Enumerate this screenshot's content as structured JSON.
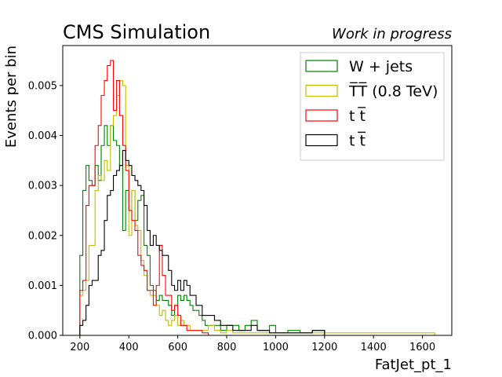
{
  "chart_data": {
    "type": "histogram-step",
    "title": "CMS Simulation",
    "subtitle": "Work in progress",
    "xlabel": "FatJet_pt_1",
    "ylabel": "Events per bin",
    "xlim": [
      130,
      1720
    ],
    "ylim": [
      0,
      0.0058
    ],
    "xticks": [
      200,
      400,
      600,
      800,
      1000,
      1200,
      1400,
      1600
    ],
    "yticks": [
      0.0,
      0.001,
      0.002,
      0.003,
      0.004,
      0.005
    ],
    "ytick_labels": [
      "0.000",
      "0.001",
      "0.002",
      "0.003",
      "0.004",
      "0.005"
    ],
    "grid": false,
    "legend_position": "upper right",
    "series": [
      {
        "name": "W + jets",
        "color": "#008000",
        "bins": [
          [
            200,
            0.0016
          ],
          [
            212,
            0.0029
          ],
          [
            225,
            0.0034
          ],
          [
            237,
            0.0031
          ],
          [
            250,
            0.003
          ],
          [
            262,
            0.0034
          ],
          [
            275,
            0.0031
          ],
          [
            287,
            0.0038
          ],
          [
            300,
            0.0042
          ],
          [
            312,
            0.0038
          ],
          [
            325,
            0.0042
          ],
          [
            337,
            0.0039
          ],
          [
            350,
            0.0038
          ],
          [
            362,
            0.0034
          ],
          [
            375,
            0.0021
          ],
          [
            387,
            0.0029
          ],
          [
            400,
            0.0025
          ],
          [
            412,
            0.0029
          ],
          [
            425,
            0.0023
          ],
          [
            437,
            0.0027
          ],
          [
            450,
            0.0028
          ],
          [
            462,
            0.0018
          ],
          [
            475,
            0.0016
          ],
          [
            487,
            0.001
          ],
          [
            500,
            0.0009
          ],
          [
            512,
            0.0007
          ],
          [
            525,
            0.0008
          ],
          [
            537,
            0.0007
          ],
          [
            550,
            0.0007
          ],
          [
            562,
            0.0006
          ],
          [
            575,
            0.0004
          ],
          [
            587,
            0.0006
          ],
          [
            600,
            0.0008
          ],
          [
            612,
            0.0007
          ],
          [
            625,
            0.0008
          ],
          [
            637,
            0.0007
          ],
          [
            650,
            0.0006
          ],
          [
            662,
            0.0005
          ],
          [
            675,
            0.0005
          ],
          [
            687,
            0.0004
          ],
          [
            700,
            0.0003
          ],
          [
            712,
            0.0002
          ],
          [
            725,
            0.0002
          ],
          [
            750,
            0.0002
          ],
          [
            775,
            0.0001
          ],
          [
            800,
            0.0002
          ],
          [
            825,
            0.0002
          ],
          [
            850,
            0.0001
          ],
          [
            875,
            0.0002
          ],
          [
            900,
            0.0003
          ],
          [
            925,
            0.0001
          ],
          [
            950,
            0.0001
          ],
          [
            975,
            0.0002
          ],
          [
            1000,
            5e-05
          ],
          [
            1050,
            0.0001
          ],
          [
            1100,
            5e-05
          ],
          [
            1150,
            0.0001
          ],
          [
            1200,
            0.0
          ]
        ]
      },
      {
        "name": "T̅T̅ (0.8 TeV)",
        "color": "#bfbf00",
        "bins": [
          [
            200,
            0.0008
          ],
          [
            212,
            0.0009
          ],
          [
            225,
            0.0011
          ],
          [
            237,
            0.0018
          ],
          [
            250,
            0.0018
          ],
          [
            262,
            0.0029
          ],
          [
            275,
            0.0032
          ],
          [
            287,
            0.0031
          ],
          [
            300,
            0.0035
          ],
          [
            312,
            0.0033
          ],
          [
            325,
            0.0042
          ],
          [
            337,
            0.0044
          ],
          [
            350,
            0.0048
          ],
          [
            362,
            0.0051
          ],
          [
            375,
            0.005
          ],
          [
            387,
            0.0034
          ],
          [
            400,
            0.002
          ],
          [
            412,
            0.0029
          ],
          [
            425,
            0.0022
          ],
          [
            437,
            0.0021
          ],
          [
            450,
            0.0015
          ],
          [
            462,
            0.0012
          ],
          [
            475,
            0.0009
          ],
          [
            487,
            0.0008
          ],
          [
            500,
            0.0008
          ],
          [
            512,
            0.0006
          ],
          [
            525,
            0.0004
          ],
          [
            537,
            0.0005
          ],
          [
            550,
            0.0003
          ],
          [
            562,
            0.0002
          ],
          [
            575,
            0.0003
          ],
          [
            587,
            0.0004
          ],
          [
            600,
            0.0002
          ],
          [
            612,
            0.0003
          ],
          [
            625,
            0.0002
          ],
          [
            637,
            0.0002
          ],
          [
            650,
            0.0001
          ],
          [
            675,
            0.0001
          ],
          [
            700,
            0.0001
          ],
          [
            725,
            0.0002
          ],
          [
            750,
            0.0001
          ],
          [
            775,
            5e-05
          ],
          [
            800,
            0.0001
          ],
          [
            825,
            5e-05
          ],
          [
            850,
            5e-05
          ],
          [
            900,
            5e-05
          ],
          [
            1000,
            5e-05
          ],
          [
            1050,
            5e-05
          ],
          [
            1100,
            5e-05
          ],
          [
            1250,
            5e-05
          ],
          [
            1300,
            5e-05
          ],
          [
            1600,
            5e-05
          ],
          [
            1650,
            0.0
          ]
        ]
      },
      {
        "name": "t t̅",
        "color": "#ff0000",
        "bins": [
          [
            200,
            0.0009
          ],
          [
            212,
            0.0011
          ],
          [
            225,
            0.0026
          ],
          [
            237,
            0.003
          ],
          [
            250,
            0.003
          ],
          [
            262,
            0.0038
          ],
          [
            275,
            0.0042
          ],
          [
            287,
            0.0048
          ],
          [
            300,
            0.0051
          ],
          [
            312,
            0.0054
          ],
          [
            325,
            0.0055
          ],
          [
            337,
            0.0045
          ],
          [
            350,
            0.0051
          ],
          [
            362,
            0.0044
          ],
          [
            375,
            0.0038
          ],
          [
            387,
            0.0033
          ],
          [
            400,
            0.0025
          ],
          [
            412,
            0.0023
          ],
          [
            425,
            0.0021
          ],
          [
            437,
            0.0016
          ],
          [
            450,
            0.0014
          ],
          [
            462,
            0.0013
          ],
          [
            475,
            0.0009
          ],
          [
            487,
            0.0009
          ],
          [
            500,
            0.0006
          ],
          [
            512,
            0.001
          ],
          [
            525,
            0.0018
          ],
          [
            537,
            0.0012
          ],
          [
            550,
            0.0008
          ],
          [
            562,
            0.0008
          ],
          [
            575,
            0.0005
          ],
          [
            587,
            0.0006
          ],
          [
            600,
            0.0004
          ],
          [
            612,
            0.0002
          ],
          [
            625,
            0.0002
          ],
          [
            637,
            0.0001
          ],
          [
            650,
            0.0001
          ],
          [
            675,
            0.0001
          ],
          [
            700,
            5e-05
          ],
          [
            725,
            0.0
          ]
        ]
      },
      {
        "name": "t t̅",
        "color": "#000000",
        "bins": [
          [
            200,
            0.0002
          ],
          [
            212,
            0.0003
          ],
          [
            225,
            0.0006
          ],
          [
            237,
            0.001
          ],
          [
            250,
            0.0011
          ],
          [
            262,
            0.0011
          ],
          [
            275,
            0.0016
          ],
          [
            287,
            0.0017
          ],
          [
            300,
            0.0023
          ],
          [
            312,
            0.0028
          ],
          [
            325,
            0.0029
          ],
          [
            337,
            0.0032
          ],
          [
            350,
            0.0033
          ],
          [
            362,
            0.0034
          ],
          [
            375,
            0.0037
          ],
          [
            387,
            0.0035
          ],
          [
            400,
            0.0034
          ],
          [
            412,
            0.0032
          ],
          [
            425,
            0.0031
          ],
          [
            437,
            0.003
          ],
          [
            450,
            0.0029
          ],
          [
            462,
            0.0026
          ],
          [
            475,
            0.0021
          ],
          [
            487,
            0.0018
          ],
          [
            500,
            0.002
          ],
          [
            512,
            0.0018
          ],
          [
            525,
            0.0017
          ],
          [
            537,
            0.0016
          ],
          [
            550,
            0.0016
          ],
          [
            562,
            0.0013
          ],
          [
            575,
            0.001
          ],
          [
            587,
            0.0009
          ],
          [
            600,
            0.0011
          ],
          [
            612,
            0.0009
          ],
          [
            625,
            0.0011
          ],
          [
            637,
            0.001
          ],
          [
            650,
            0.0008
          ],
          [
            662,
            0.0008
          ],
          [
            675,
            0.0006
          ],
          [
            687,
            0.0006
          ],
          [
            700,
            0.0004
          ],
          [
            712,
            0.0004
          ],
          [
            725,
            0.0004
          ],
          [
            737,
            0.0004
          ],
          [
            750,
            0.0003
          ],
          [
            762,
            0.0003
          ],
          [
            775,
            0.0002
          ],
          [
            787,
            0.0002
          ],
          [
            800,
            0.0002
          ],
          [
            825,
            0.0001
          ],
          [
            850,
            0.0001
          ],
          [
            875,
            0.0001
          ],
          [
            900,
            0.0002
          ],
          [
            925,
            0.0001
          ],
          [
            950,
            0.0001
          ],
          [
            975,
            5e-05
          ],
          [
            1000,
            5e-05
          ],
          [
            1050,
            5e-05
          ],
          [
            1100,
            5e-05
          ],
          [
            1150,
            0.0001
          ],
          [
            1200,
            0.0
          ]
        ]
      }
    ]
  }
}
